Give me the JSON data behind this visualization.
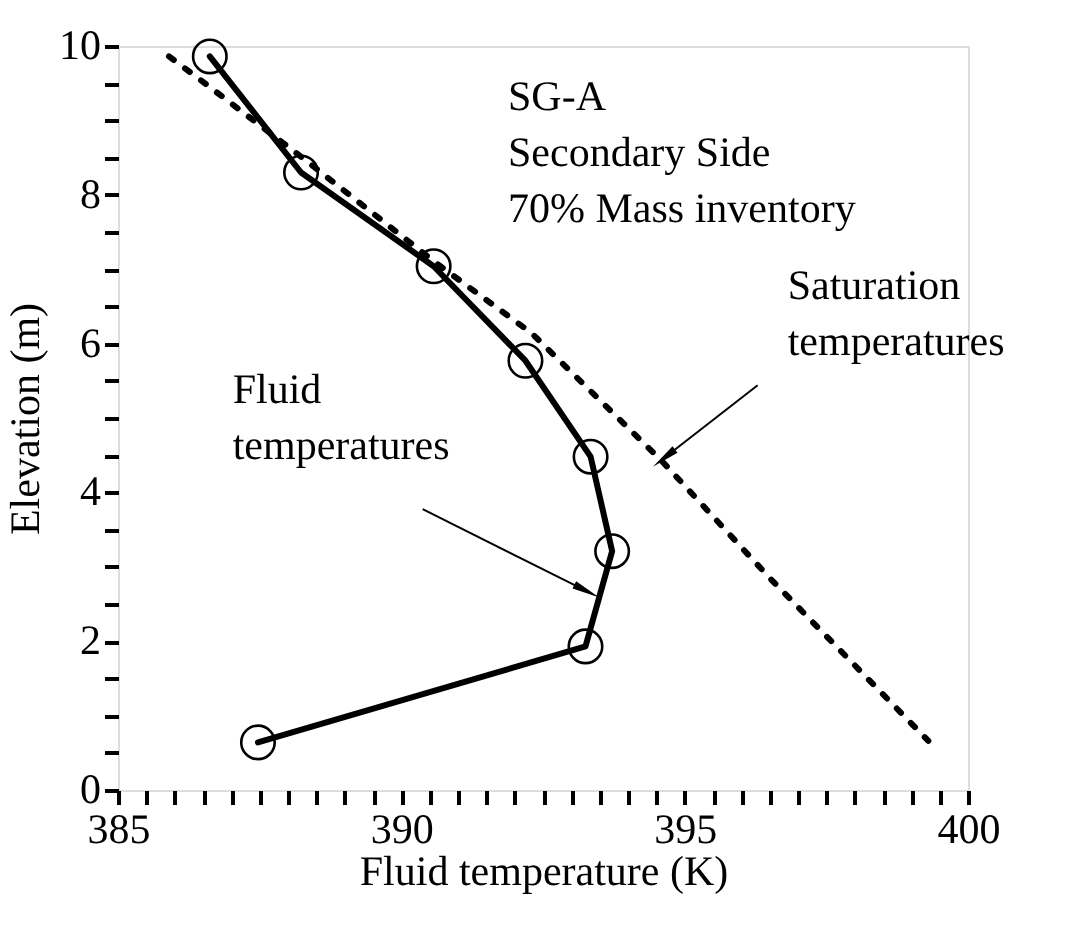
{
  "chart_data": {
    "type": "line",
    "xlabel": "Fluid temperature  (K)",
    "ylabel": "Elevation  (m)",
    "xlim": [
      385,
      400
    ],
    "ylim": [
      0,
      10
    ],
    "xticks": [
      385,
      {
        "value": 385.5,
        "label": null
      },
      {
        "value": 386,
        "label": null
      },
      {
        "value": 386.5,
        "label": null
      },
      {
        "value": 387,
        "label": null
      },
      {
        "value": 387.5,
        "label": null
      },
      {
        "value": 388,
        "label": null
      },
      {
        "value": 388.5,
        "label": null
      },
      {
        "value": 389,
        "label": null
      },
      {
        "value": 389.5,
        "label": null
      },
      390,
      {
        "value": 390.5,
        "label": null
      },
      {
        "value": 391,
        "label": null
      },
      {
        "value": 391.5,
        "label": null
      },
      {
        "value": 392,
        "label": null
      },
      {
        "value": 392.5,
        "label": null
      },
      {
        "value": 393,
        "label": null
      },
      {
        "value": 393.5,
        "label": null
      },
      {
        "value": 394,
        "label": null
      },
      {
        "value": 394.5,
        "label": null
      },
      395,
      {
        "value": 395.5,
        "label": null
      },
      {
        "value": 396,
        "label": null
      },
      {
        "value": 396.5,
        "label": null
      },
      {
        "value": 397,
        "label": null
      },
      {
        "value": 397.5,
        "label": null
      },
      {
        "value": 398,
        "label": null
      },
      {
        "value": 398.5,
        "label": null
      },
      {
        "value": 399,
        "label": null
      },
      {
        "value": 399.5,
        "label": null
      },
      400
    ],
    "yticks": [
      0,
      {
        "value": 0.5,
        "label": null
      },
      {
        "value": 1,
        "label": null
      },
      {
        "value": 1.5,
        "label": null
      },
      2,
      {
        "value": 2.5,
        "label": null
      },
      {
        "value": 3,
        "label": null
      },
      {
        "value": 3.5,
        "label": null
      },
      4,
      {
        "value": 4.5,
        "label": null
      },
      {
        "value": 5,
        "label": null
      },
      {
        "value": 5.5,
        "label": null
      },
      6,
      {
        "value": 6.5,
        "label": null
      },
      {
        "value": 7,
        "label": null
      },
      {
        "value": 7.5,
        "label": null
      },
      8,
      {
        "value": 8.5,
        "label": null
      },
      {
        "value": 9,
        "label": null
      },
      {
        "value": 9.5,
        "label": null
      },
      10
    ],
    "grid": false,
    "series": [
      {
        "color": "#000000",
        "marker": "circle",
        "line_style": "solid",
        "x": [
          386.62,
          388.23,
          390.57,
          392.19,
          393.34,
          393.72,
          393.25,
          387.47
        ],
        "values": [
          9.86,
          8.3,
          7.04,
          5.77,
          4.48,
          3.21,
          1.93,
          0.64
        ]
      },
      {
        "color": "#000000",
        "marker": "none",
        "line_style": "dotted",
        "x": [
          385.9,
          386.6,
          388.2,
          390.6,
          392.3,
          394.6,
          396.5,
          399.3
        ],
        "values": [
          9.86,
          9.46,
          8.53,
          7.09,
          6.14,
          4.42,
          2.85,
          0.66
        ]
      }
    ],
    "annotations": [
      "SG-A",
      "Secondary Side",
      "70% Mass inventory",
      {
        "text": "Fluid temperatures",
        "x": 393.2,
        "y": 2.7
      },
      {
        "text": "Saturation temperatures",
        "x": 394.7,
        "y": 4.5
      }
    ]
  }
}
